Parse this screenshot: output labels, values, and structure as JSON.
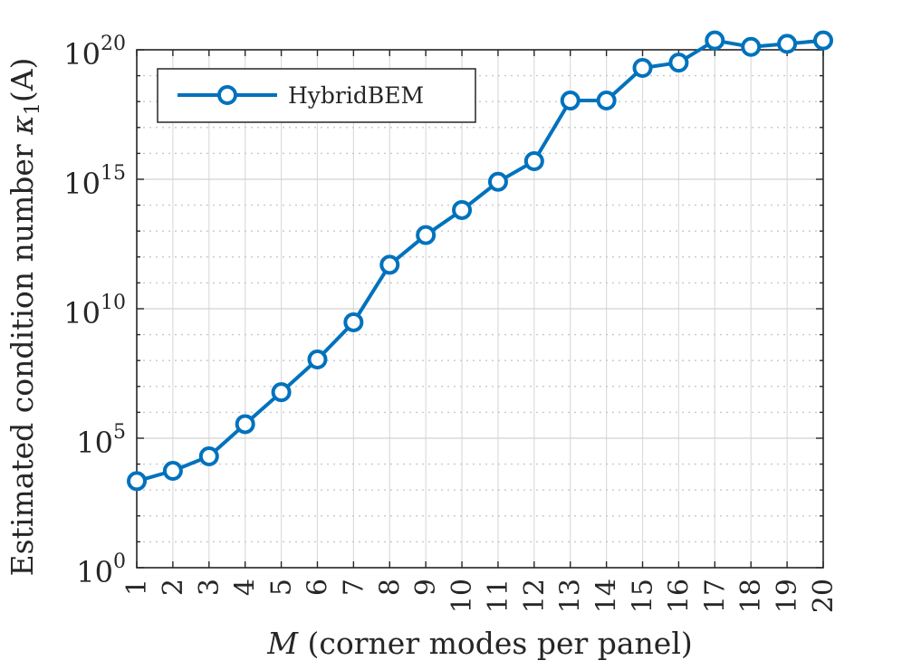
{
  "chart_data": {
    "type": "line",
    "xlabel_var": "M",
    "xlabel_rest": " (corner modes per panel)",
    "ylabel_prefix": "Estimated condition number ",
    "ylabel_kappa": "κ",
    "ylabel_sub": "1",
    "ylabel_suffix": "(A)",
    "y_scale": "log",
    "ylim": [
      1,
      1e+20
    ],
    "xlim": [
      1,
      20
    ],
    "x_ticks": [
      1,
      2,
      3,
      4,
      5,
      6,
      7,
      8,
      9,
      10,
      11,
      12,
      13,
      14,
      15,
      16,
      17,
      18,
      19,
      20
    ],
    "y_ticks": [
      {
        "base": "10",
        "exp": "0",
        "value": 1
      },
      {
        "base": "10",
        "exp": "5",
        "value": 100000.0
      },
      {
        "base": "10",
        "exp": "10",
        "value": 10000000000.0
      },
      {
        "base": "10",
        "exp": "15",
        "value": 1000000000000000.0
      },
      {
        "base": "10",
        "exp": "20",
        "value": 1e+20
      }
    ],
    "grid": true,
    "legend": {
      "position": "top-left",
      "entries": [
        "HybridBEM"
      ]
    },
    "series": [
      {
        "name": "HybridBEM",
        "color": "#0072BD",
        "marker": "circle",
        "x": [
          1,
          2,
          3,
          4,
          5,
          6,
          7,
          8,
          9,
          10,
          11,
          12,
          13,
          14,
          15,
          16,
          17,
          18,
          19,
          20
        ],
        "y": [
          2200.0,
          5500.0,
          20000.0,
          350000.0,
          6000000.0,
          110000000.0,
          3000000000.0,
          500000000000.0,
          7000000000000.0,
          65000000000000.0,
          800000000000000.0,
          5000000000000000.0,
          1.1e+18,
          1.1e+18,
          2e+19,
          3.2e+19,
          2.3e+20,
          1.3e+20,
          1.7e+20,
          2.3e+20
        ]
      }
    ]
  }
}
